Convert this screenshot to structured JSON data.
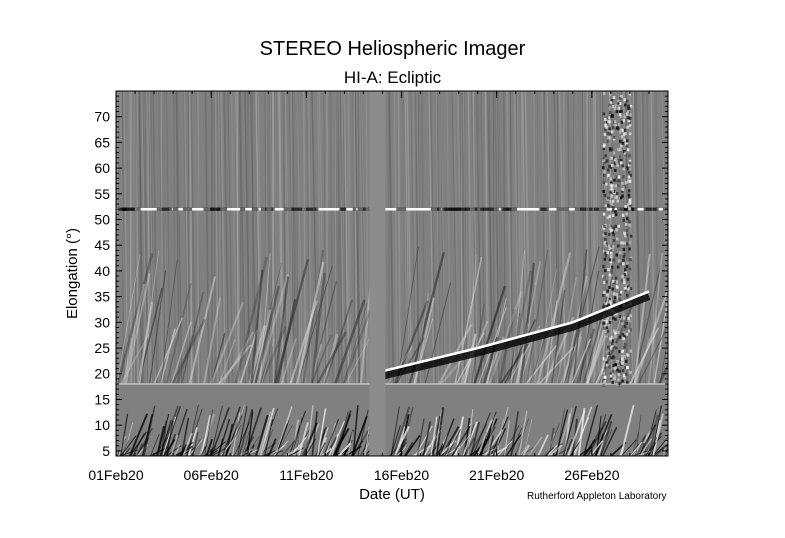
{
  "title": "STEREO Heliospheric Imager",
  "subtitle": "HI-A: Ecliptic",
  "credit": "Rutherford Appleton Laboratory",
  "chart_data": {
    "type": "heatmap",
    "title": "STEREO Heliospheric Imager",
    "subtitle": "HI-A: Ecliptic",
    "xlabel": "Date (UT)",
    "ylabel": "Elongation (°)",
    "xlim": [
      "2020-02-01",
      "2020-03-01"
    ],
    "ylim": [
      4,
      75
    ],
    "x_ticks": [
      {
        "label": "01Feb20",
        "date": "2020-02-01"
      },
      {
        "label": "06Feb20",
        "date": "2020-02-06"
      },
      {
        "label": "11Feb20",
        "date": "2020-02-11"
      },
      {
        "label": "16Feb20",
        "date": "2020-02-16"
      },
      {
        "label": "21Feb20",
        "date": "2020-02-21"
      },
      {
        "label": "26Feb20",
        "date": "2020-02-26"
      }
    ],
    "y_ticks": [
      5,
      10,
      15,
      20,
      25,
      30,
      35,
      40,
      45,
      50,
      55,
      60,
      65,
      70
    ],
    "colormap": "grayscale",
    "background_color": "#808080",
    "data_gap": {
      "start": "2020-02-14",
      "end": "2020-02-15"
    },
    "features": [
      {
        "kind": "bright-band",
        "y": 52,
        "x_start": "2020-02-01",
        "x_end": "2020-03-01"
      },
      {
        "kind": "track",
        "points": [
          [
            "2020-02-15",
            20.5
          ],
          [
            "2020-02-20",
            25
          ],
          [
            "2020-02-25",
            30
          ],
          [
            "2020-02-29",
            36
          ]
        ]
      }
    ]
  }
}
